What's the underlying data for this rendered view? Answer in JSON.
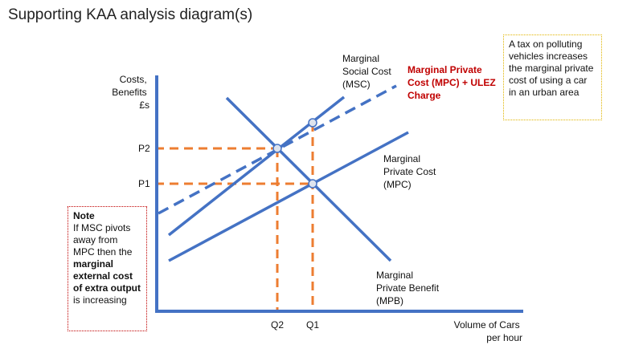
{
  "title": "Supporting KAA analysis diagram(s)",
  "colors": {
    "curve": "#4472c4",
    "guide": "#ed7d31",
    "highlight": "#c00000",
    "axis": "#4472c4"
  },
  "axes": {
    "y_label_lines": [
      "Costs,",
      "Benefits",
      "£s"
    ],
    "x_label_lines": [
      "Volume of Cars",
      "per hour"
    ],
    "y_ticks": [
      "P2",
      "P1"
    ],
    "x_ticks": [
      "Q2",
      "Q1"
    ]
  },
  "curves": {
    "msc_label_lines": [
      "Marginal",
      "Social Cost",
      "(MSC)"
    ],
    "mpc_ulez_label_lines": [
      "Marginal Private",
      "Cost (MPC) + ULEZ",
      "Charge"
    ],
    "mpc_label_lines": [
      "Marginal",
      "Private Cost",
      "(MPC)"
    ],
    "mpb_label_lines": [
      "Marginal",
      "Private Benefit",
      "(MPB)"
    ]
  },
  "tax_box": {
    "text": "A tax on polluting vehicles increases the marginal private cost of using a car in an urban area"
  },
  "note_box": {
    "heading": "Note",
    "text_1": "If MSC pivots away from MPC then the",
    "bold_1": "marginal external cost of extra output",
    "text_2": "is increasing"
  }
}
